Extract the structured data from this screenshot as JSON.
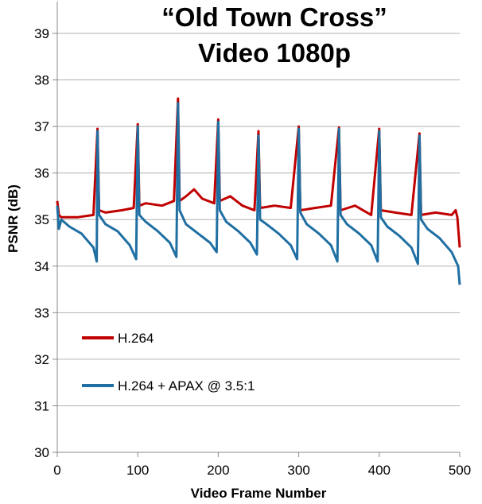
{
  "chart_data": {
    "type": "line",
    "title_line1": "“Old Town Cross”",
    "title_line2": "Video 1080p",
    "xlabel": "Video Frame Number",
    "ylabel": "PSNR (dB)",
    "xlim": [
      0,
      500
    ],
    "ylim": [
      30,
      39
    ],
    "x_ticks": [
      "0",
      "100",
      "200",
      "300",
      "400",
      "500"
    ],
    "y_ticks": [
      "30",
      "31",
      "32",
      "33",
      "34",
      "35",
      "36",
      "37",
      "38",
      "39"
    ],
    "grid": "horizontal",
    "legend_placement": "lower-left",
    "series": [
      {
        "name": "H.264",
        "color": "#c00000",
        "x": [
          0,
          2,
          5,
          25,
          45,
          50,
          52,
          60,
          80,
          95,
          100,
          102,
          110,
          130,
          145,
          150,
          152,
          160,
          170,
          180,
          195,
          200,
          202,
          215,
          230,
          245,
          250,
          252,
          270,
          290,
          300,
          302,
          320,
          340,
          350,
          352,
          370,
          390,
          400,
          402,
          420,
          440,
          450,
          452,
          470,
          490,
          495,
          497,
          500
        ],
        "values": [
          35.4,
          35.1,
          35.05,
          35.05,
          35.1,
          36.95,
          35.2,
          35.15,
          35.2,
          35.25,
          37.05,
          35.3,
          35.35,
          35.3,
          35.4,
          37.6,
          35.4,
          35.5,
          35.65,
          35.45,
          35.35,
          37.15,
          35.4,
          35.5,
          35.3,
          35.2,
          36.9,
          35.25,
          35.3,
          35.25,
          37.0,
          35.2,
          35.25,
          35.3,
          36.98,
          35.2,
          35.3,
          35.1,
          36.95,
          35.2,
          35.15,
          35.1,
          36.85,
          35.1,
          35.15,
          35.1,
          35.2,
          35.05,
          34.4
        ]
      },
      {
        "name": "H.264 + APAX @ 3.5:1",
        "color": "#1f6fa3",
        "x": [
          0,
          2,
          5,
          15,
          30,
          45,
          49,
          50,
          52,
          60,
          75,
          90,
          98,
          100,
          102,
          110,
          125,
          140,
          148,
          150,
          152,
          160,
          175,
          190,
          198,
          200,
          202,
          210,
          225,
          240,
          248,
          250,
          252,
          260,
          275,
          290,
          298,
          300,
          302,
          310,
          325,
          340,
          348,
          350,
          352,
          360,
          375,
          390,
          398,
          400,
          402,
          410,
          425,
          440,
          448,
          450,
          452,
          460,
          475,
          490,
          498,
          500
        ],
        "values": [
          35.3,
          34.8,
          35.0,
          34.85,
          34.7,
          34.4,
          34.1,
          36.9,
          35.1,
          34.9,
          34.75,
          34.45,
          34.15,
          37.0,
          35.1,
          34.95,
          34.75,
          34.5,
          34.2,
          37.5,
          35.2,
          34.9,
          34.7,
          34.5,
          34.3,
          37.1,
          35.2,
          34.95,
          34.75,
          34.5,
          34.25,
          36.8,
          35.0,
          34.9,
          34.7,
          34.45,
          34.15,
          36.95,
          35.15,
          34.9,
          34.7,
          34.45,
          34.1,
          36.95,
          35.1,
          34.9,
          34.7,
          34.45,
          34.1,
          36.9,
          35.05,
          34.85,
          34.65,
          34.4,
          34.05,
          36.8,
          35.0,
          34.8,
          34.6,
          34.3,
          34.0,
          33.6
        ]
      }
    ]
  }
}
